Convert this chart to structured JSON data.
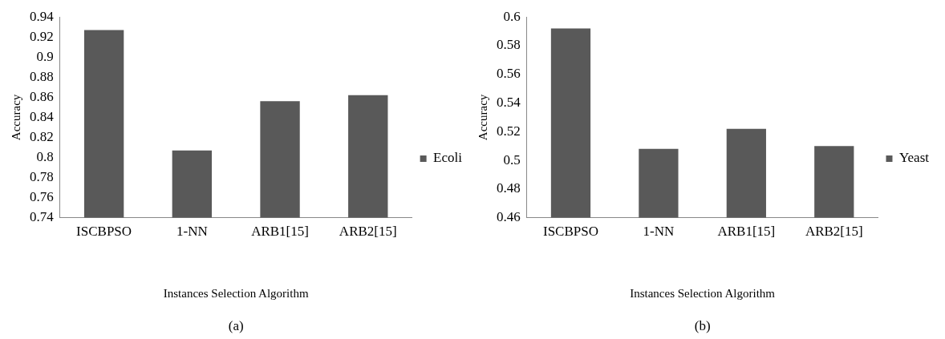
{
  "chart_data": [
    {
      "type": "bar",
      "categories": [
        "ISCBPSO",
        "1-NN",
        "ARB1[15]",
        "ARB2[15]"
      ],
      "series": [
        {
          "name": "Ecoli",
          "color": "#595959",
          "values": [
            0.927,
            0.807,
            0.856,
            0.862
          ]
        }
      ],
      "ylim": [
        0.74,
        0.94
      ],
      "yticks": [
        0.74,
        0.76,
        0.78,
        0.8,
        0.82,
        0.84,
        0.86,
        0.88,
        0.9,
        0.92,
        0.94
      ],
      "xlabel": "Instances Selection Algorithm",
      "ylabel": "Accuracy",
      "legend": "right",
      "grid": false,
      "annotations": [
        "(a)"
      ]
    },
    {
      "type": "bar",
      "categories": [
        "ISCBPSO",
        "1-NN",
        "ARB1[15]",
        "ARB2[15]"
      ],
      "series": [
        {
          "name": "Yeast",
          "color": "#595959",
          "values": [
            0.592,
            0.508,
            0.522,
            0.51
          ]
        }
      ],
      "ylim": [
        0.46,
        0.6
      ],
      "yticks": [
        0.46,
        0.48,
        0.5,
        0.52,
        0.54,
        0.56,
        0.58,
        0.6
      ],
      "xlabel": "Instances Selection Algorithm",
      "ylabel": "Accuracy",
      "legend": "right",
      "grid": false,
      "annotations": [
        "(b)"
      ]
    }
  ]
}
